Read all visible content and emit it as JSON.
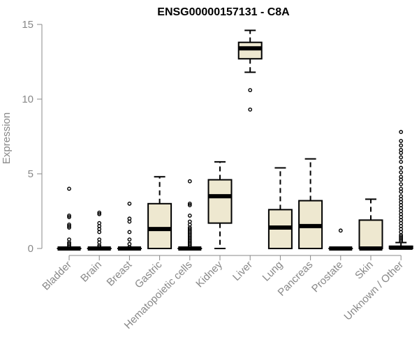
{
  "chart_data": {
    "type": "boxplot",
    "title": "ENSG00000157131 - C8A",
    "xlabel": "",
    "ylabel": "Expression",
    "ylim": [
      0,
      15
    ],
    "yticks": [
      0,
      5,
      10,
      15
    ],
    "grid": false,
    "legend": "none",
    "colors": {
      "box_fill": "#EEE8D0",
      "stroke": "#000000",
      "axis_text": "#888888"
    },
    "categories": [
      "Bladder",
      "Brain",
      "Breast",
      "Gastric",
      "Hematopoietic cells",
      "Kidney",
      "Liver",
      "Lung",
      "Pancreas",
      "Prostate",
      "Skin",
      "Unknown / Other"
    ],
    "boxes": [
      {
        "category": "Bladder",
        "whisker_low": 0,
        "q1": 0,
        "median": 0,
        "q3": 0,
        "whisker_high": 0,
        "outliers": [
          4.0,
          2.2,
          2.1,
          1.6,
          1.5,
          1.4,
          0.6,
          0.4,
          0.3,
          0.2,
          0.1
        ]
      },
      {
        "category": "Brain",
        "whisker_low": 0,
        "q1": 0,
        "median": 0,
        "q3": 0,
        "whisker_high": 0,
        "outliers": [
          2.4,
          2.3,
          1.7,
          1.5,
          1.3,
          1.1,
          0.6,
          0.4,
          0.2,
          0.1
        ]
      },
      {
        "category": "Breast",
        "whisker_low": 0,
        "q1": 0,
        "median": 0,
        "q3": 0,
        "whisker_high": 0,
        "outliers": [
          3.0,
          2.0,
          1.8,
          1.1,
          0.6,
          0.3,
          0.1
        ]
      },
      {
        "category": "Gastric",
        "whisker_low": 0,
        "q1": 0,
        "median": 1.3,
        "q3": 3.0,
        "whisker_high": 4.8,
        "outliers": []
      },
      {
        "category": "Hematopoietic cells",
        "whisker_low": 0,
        "q1": 0,
        "median": 0,
        "q3": 0,
        "whisker_high": 0,
        "outliers": [
          4.5,
          3.0,
          2.9,
          2.2,
          1.8,
          1.6,
          1.4,
          1.3,
          1.2,
          1.1,
          1.0,
          0.9,
          0.8,
          0.7,
          0.6,
          0.5,
          0.4,
          0.3,
          0.2,
          0.1
        ]
      },
      {
        "category": "Kidney",
        "whisker_low": 0,
        "q1": 1.7,
        "median": 3.5,
        "q3": 4.6,
        "whisker_high": 5.8,
        "outliers": []
      },
      {
        "category": "Liver",
        "whisker_low": 11.8,
        "q1": 12.7,
        "median": 13.4,
        "q3": 13.8,
        "whisker_high": 14.6,
        "outliers": [
          10.6,
          9.3
        ]
      },
      {
        "category": "Lung",
        "whisker_low": 0,
        "q1": 0,
        "median": 1.4,
        "q3": 2.6,
        "whisker_high": 5.4,
        "outliers": []
      },
      {
        "category": "Pancreas",
        "whisker_low": 0,
        "q1": 0,
        "median": 1.5,
        "q3": 3.2,
        "whisker_high": 6.0,
        "outliers": []
      },
      {
        "category": "Prostate",
        "whisker_low": 0,
        "q1": 0,
        "median": 0,
        "q3": 0,
        "whisker_high": 0,
        "outliers": [
          1.2
        ]
      },
      {
        "category": "Skin",
        "whisker_low": 0,
        "q1": 0,
        "median": 0,
        "q3": 1.9,
        "whisker_high": 3.3,
        "outliers": []
      },
      {
        "category": "Unknown / Other",
        "whisker_low": 0,
        "q1": 0,
        "median": 0.05,
        "q3": 0.15,
        "whisker_high": 0.4,
        "outliers": [
          7.8,
          7.2,
          6.9,
          6.6,
          6.4,
          6.1,
          5.8,
          5.4,
          5.1,
          4.8,
          4.6,
          4.3,
          4.0,
          3.8,
          3.5,
          3.3,
          3.1,
          2.9,
          2.7,
          2.5,
          2.3,
          2.1,
          1.9,
          1.7,
          1.5,
          1.3,
          1.1,
          0.9,
          0.8,
          0.7,
          0.6,
          0.5
        ]
      }
    ]
  }
}
